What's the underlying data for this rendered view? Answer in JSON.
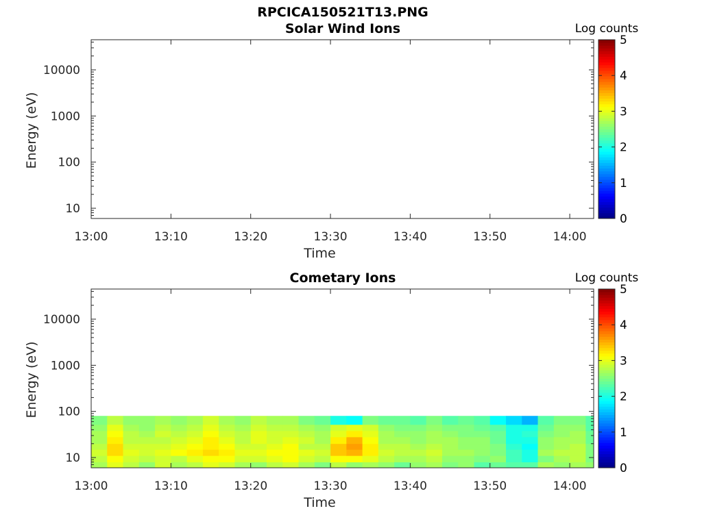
{
  "figure_title": "RPCICA150521T13.PNG",
  "chart_data": [
    {
      "type": "heatmap",
      "title": "Solar Wind Ions",
      "xlabel": "Time",
      "ylabel": "Energy (eV)",
      "x_ticks": [
        "13:00",
        "13:10",
        "13:20",
        "13:30",
        "13:40",
        "13:50",
        "14:00"
      ],
      "x_range_minutes": [
        0,
        63
      ],
      "y_ticks": [
        "10",
        "100",
        "1000",
        "10000"
      ],
      "y_scale": "log",
      "y_range": [
        6,
        45000
      ],
      "colorbar": {
        "label": "Log counts",
        "ticks": [
          "0",
          "1",
          "2",
          "3",
          "4",
          "5"
        ],
        "range": [
          0,
          5
        ],
        "colormap": "jet"
      },
      "energy_bands": [],
      "values": []
    },
    {
      "type": "heatmap",
      "title": "Cometary Ions",
      "xlabel": "Time",
      "ylabel": "Energy (eV)",
      "x_ticks": [
        "13:00",
        "13:10",
        "13:20",
        "13:30",
        "13:40",
        "13:50",
        "14:00"
      ],
      "x_range_minutes": [
        0,
        63
      ],
      "y_ticks": [
        "10",
        "100",
        "1000",
        "10000"
      ],
      "y_scale": "log",
      "y_range": [
        6,
        45000
      ],
      "colorbar": {
        "label": "Log counts",
        "ticks": [
          "0",
          "1",
          "2",
          "3",
          "4",
          "5"
        ],
        "range": [
          0,
          5
        ],
        "colormap": "jet"
      },
      "energy_bands": [
        6,
        8,
        11,
        15,
        20,
        28,
        38,
        52,
        80
      ],
      "time_bins_minutes": [
        0,
        2,
        4,
        6,
        8,
        10,
        12,
        14,
        16,
        18,
        20,
        22,
        24,
        26,
        28,
        30,
        32,
        34,
        36,
        38,
        40,
        42,
        44,
        46,
        48,
        50,
        52,
        54,
        56,
        58,
        60,
        62,
        63
      ],
      "values": [
        [
          2.7,
          3.0,
          2.8,
          2.6,
          2.9,
          2.7,
          2.8,
          3.0,
          2.9,
          2.7,
          2.6,
          2.8,
          2.9,
          2.7,
          2.5,
          2.8,
          2.6,
          2.7,
          2.6,
          2.4,
          2.6,
          2.7,
          2.5,
          2.6,
          2.3,
          2.4,
          2.3,
          2.3,
          2.7,
          2.6,
          2.7,
          2.6
        ],
        [
          2.8,
          3.1,
          2.9,
          2.8,
          2.9,
          2.8,
          3.0,
          3.1,
          3.1,
          2.9,
          2.9,
          3.0,
          3.1,
          2.9,
          2.8,
          3.1,
          3.1,
          3.0,
          2.8,
          2.7,
          2.7,
          2.8,
          2.6,
          2.6,
          2.5,
          2.6,
          2.2,
          2.0,
          2.5,
          2.7,
          2.8,
          2.5
        ],
        [
          2.9,
          3.3,
          3.0,
          2.9,
          3.0,
          3.1,
          3.2,
          3.3,
          3.2,
          3.0,
          3.0,
          3.1,
          3.1,
          3.0,
          2.9,
          3.4,
          3.5,
          3.2,
          2.9,
          2.8,
          2.8,
          2.9,
          2.7,
          2.7,
          2.6,
          2.5,
          2.2,
          2.0,
          2.7,
          2.8,
          2.8,
          2.5
        ],
        [
          2.8,
          3.3,
          2.9,
          2.9,
          2.9,
          3.0,
          3.1,
          3.2,
          3.1,
          2.9,
          2.9,
          3.0,
          3.1,
          2.8,
          2.8,
          3.4,
          3.6,
          3.2,
          2.8,
          2.8,
          2.7,
          2.8,
          2.7,
          2.6,
          2.6,
          2.5,
          2.1,
          1.9,
          2.6,
          2.7,
          2.8,
          2.5
        ],
        [
          2.7,
          3.2,
          2.8,
          2.8,
          2.8,
          2.9,
          3.0,
          3.2,
          3.0,
          2.8,
          3.0,
          2.9,
          3.0,
          2.9,
          2.7,
          3.2,
          3.5,
          3.1,
          2.7,
          2.7,
          2.6,
          2.7,
          2.7,
          2.6,
          2.6,
          2.4,
          2.0,
          2.0,
          2.6,
          2.7,
          2.7,
          2.4
        ],
        [
          2.7,
          3.1,
          2.8,
          2.7,
          2.9,
          2.8,
          2.9,
          3.1,
          2.9,
          2.8,
          3.0,
          2.9,
          2.9,
          2.8,
          2.7,
          3.0,
          3.2,
          3.0,
          2.7,
          2.6,
          2.6,
          2.7,
          2.6,
          2.5,
          2.5,
          2.4,
          2.0,
          2.1,
          2.5,
          2.6,
          2.7,
          2.4
        ],
        [
          2.6,
          3.0,
          2.7,
          2.6,
          2.8,
          2.7,
          2.8,
          3.0,
          2.8,
          2.7,
          2.9,
          2.8,
          2.8,
          2.7,
          2.6,
          2.9,
          3.0,
          2.9,
          2.6,
          2.5,
          2.5,
          2.6,
          2.5,
          2.5,
          2.4,
          2.3,
          2.0,
          2.0,
          2.4,
          2.6,
          2.6,
          2.3
        ],
        [
          2.5,
          2.8,
          2.6,
          2.6,
          2.7,
          2.6,
          2.7,
          2.9,
          2.7,
          2.6,
          2.8,
          2.7,
          2.7,
          2.5,
          2.4,
          2.0,
          1.9,
          2.5,
          2.4,
          2.4,
          2.3,
          2.5,
          2.3,
          2.4,
          2.3,
          1.9,
          1.7,
          1.5,
          2.3,
          2.5,
          2.5,
          2.3
        ]
      ]
    }
  ]
}
